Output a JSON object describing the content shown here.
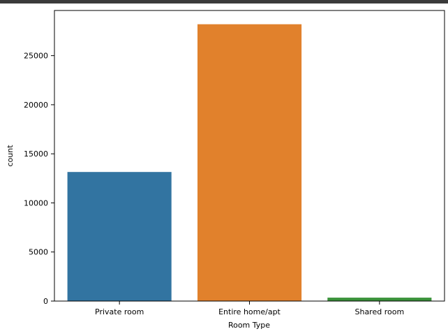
{
  "chart_data": {
    "type": "bar",
    "categories": [
      "Private room",
      "Entire home/apt",
      "Shared room"
    ],
    "values": [
      13150,
      28200,
      350
    ],
    "colors": [
      "#3274a1",
      "#e1812c",
      "#3a923a"
    ],
    "xlabel": "Room Type",
    "ylabel": "count",
    "ylim": [
      0,
      29600
    ],
    "yticks": [
      0,
      5000,
      10000,
      15000,
      20000,
      25000
    ],
    "ytick_labels": [
      "0",
      "5000",
      "10000",
      "15000",
      "20000",
      "25000"
    ],
    "grid": false
  }
}
